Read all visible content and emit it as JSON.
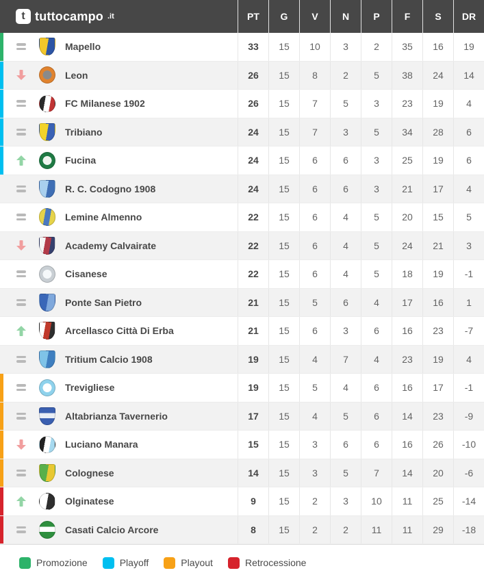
{
  "brand": {
    "icon_letter": "t",
    "name": "tuttocampo",
    "tld": ".it"
  },
  "columns": [
    "PT",
    "G",
    "V",
    "N",
    "P",
    "F",
    "S",
    "DR"
  ],
  "colors": {
    "header_bg": "#474747",
    "alt_row_bg": "#f2f2f2",
    "promozione": "#2db36a",
    "playoff": "#00bff0",
    "playout": "#f7a117",
    "retrocessione": "#d6232c",
    "trend_up": "#93d5a6",
    "trend_down": "#f19e9e",
    "trend_equal": "#b9b9b9"
  },
  "rows": [
    {
      "name": "Mapello",
      "trend": "equal",
      "zone": "promozione",
      "crest": {
        "shape": "shield",
        "style": "split2",
        "colors": [
          "#f3c72b",
          "#2d55a5"
        ]
      },
      "pt": "33",
      "g": "15",
      "v": "10",
      "n": "3",
      "p": "2",
      "f": "35",
      "s": "16",
      "dr": "19"
    },
    {
      "name": "Leon",
      "trend": "down",
      "zone": "playoff",
      "crest": {
        "shape": "circle",
        "style": "ring",
        "colors": [
          "#e0832f",
          "#8a8a8a"
        ]
      },
      "pt": "26",
      "g": "15",
      "v": "8",
      "n": "2",
      "p": "5",
      "f": "38",
      "s": "24",
      "dr": "14"
    },
    {
      "name": "FC Milanese 1902",
      "trend": "equal",
      "zone": "playoff",
      "crest": {
        "shape": "circle",
        "style": "tri",
        "colors": [
          "#2b2b2b",
          "#ffffff",
          "#c03434"
        ]
      },
      "pt": "26",
      "g": "15",
      "v": "7",
      "n": "5",
      "p": "3",
      "f": "23",
      "s": "19",
      "dr": "4"
    },
    {
      "name": "Tribiano",
      "trend": "equal",
      "zone": "playoff",
      "crest": {
        "shape": "shield",
        "style": "split2",
        "colors": [
          "#f2d32a",
          "#3a62b5"
        ]
      },
      "pt": "24",
      "g": "15",
      "v": "7",
      "n": "3",
      "p": "5",
      "f": "34",
      "s": "28",
      "dr": "6"
    },
    {
      "name": "Fucina",
      "trend": "up",
      "zone": "playoff",
      "crest": {
        "shape": "circle",
        "style": "ring",
        "colors": [
          "#1f7a44",
          "#f0f5f0"
        ]
      },
      "pt": "24",
      "g": "15",
      "v": "6",
      "n": "6",
      "p": "3",
      "f": "25",
      "s": "19",
      "dr": "6"
    },
    {
      "name": "R. C. Codogno 1908",
      "trend": "equal",
      "zone": "",
      "crest": {
        "shape": "shield",
        "style": "split2",
        "colors": [
          "#a9d0ee",
          "#3f6fb5"
        ]
      },
      "pt": "24",
      "g": "15",
      "v": "6",
      "n": "6",
      "p": "3",
      "f": "21",
      "s": "17",
      "dr": "4"
    },
    {
      "name": "Lemine Almenno",
      "trend": "equal",
      "zone": "",
      "crest": {
        "shape": "oval",
        "style": "tri",
        "colors": [
          "#e6d34a",
          "#4a79c0",
          "#e6d34a"
        ]
      },
      "pt": "22",
      "g": "15",
      "v": "6",
      "n": "4",
      "p": "5",
      "f": "20",
      "s": "15",
      "dr": "5"
    },
    {
      "name": "Academy Calvairate",
      "trend": "down",
      "zone": "",
      "crest": {
        "shape": "shield",
        "style": "tri",
        "colors": [
          "#f5f5f5",
          "#b23a48",
          "#36406e"
        ]
      },
      "pt": "22",
      "g": "15",
      "v": "6",
      "n": "4",
      "p": "5",
      "f": "24",
      "s": "21",
      "dr": "3"
    },
    {
      "name": "Cisanese",
      "trend": "equal",
      "zone": "",
      "crest": {
        "shape": "circle",
        "style": "ring",
        "colors": [
          "#c9cfd4",
          "#f5f8fa"
        ]
      },
      "pt": "22",
      "g": "15",
      "v": "6",
      "n": "4",
      "p": "5",
      "f": "18",
      "s": "19",
      "dr": "-1"
    },
    {
      "name": "Ponte San Pietro",
      "trend": "equal",
      "zone": "",
      "crest": {
        "shape": "shield",
        "style": "split2",
        "colors": [
          "#3a67b8",
          "#7fa8dc"
        ]
      },
      "pt": "21",
      "g": "15",
      "v": "5",
      "n": "6",
      "p": "4",
      "f": "17",
      "s": "16",
      "dr": "1"
    },
    {
      "name": "Arcellasco Città Di Erba",
      "trend": "up",
      "zone": "",
      "crest": {
        "shape": "shield",
        "style": "tri",
        "colors": [
          "#ffffff",
          "#c0392b",
          "#2e2e2e"
        ]
      },
      "pt": "21",
      "g": "15",
      "v": "6",
      "n": "3",
      "p": "6",
      "f": "16",
      "s": "23",
      "dr": "-7"
    },
    {
      "name": "Tritium Calcio 1908",
      "trend": "equal",
      "zone": "",
      "crest": {
        "shape": "shield",
        "style": "split2",
        "colors": [
          "#7fc3e8",
          "#3f7fc0"
        ]
      },
      "pt": "19",
      "g": "15",
      "v": "4",
      "n": "7",
      "p": "4",
      "f": "23",
      "s": "19",
      "dr": "4"
    },
    {
      "name": "Trevigliese",
      "trend": "equal",
      "zone": "playout",
      "crest": {
        "shape": "circle",
        "style": "ring",
        "colors": [
          "#8fd2ec",
          "#ffffff"
        ]
      },
      "pt": "19",
      "g": "15",
      "v": "5",
      "n": "4",
      "p": "6",
      "f": "16",
      "s": "17",
      "dr": "-1"
    },
    {
      "name": "Altabrianza Tavernerio",
      "trend": "equal",
      "zone": "playout",
      "crest": {
        "shape": "shield",
        "style": "band",
        "colors": [
          "#3a5fb0",
          "#e8edf5"
        ]
      },
      "pt": "17",
      "g": "15",
      "v": "4",
      "n": "5",
      "p": "6",
      "f": "14",
      "s": "23",
      "dr": "-9"
    },
    {
      "name": "Luciano Manara",
      "trend": "down",
      "zone": "playout",
      "crest": {
        "shape": "circle",
        "style": "tri",
        "colors": [
          "#222222",
          "#ffffff",
          "#a6d9ef"
        ]
      },
      "pt": "15",
      "g": "15",
      "v": "3",
      "n": "6",
      "p": "6",
      "f": "16",
      "s": "26",
      "dr": "-10"
    },
    {
      "name": "Colognese",
      "trend": "equal",
      "zone": "playout",
      "crest": {
        "shape": "shield",
        "style": "split2",
        "colors": [
          "#59b04a",
          "#e8c832"
        ]
      },
      "pt": "14",
      "g": "15",
      "v": "3",
      "n": "5",
      "p": "7",
      "f": "14",
      "s": "20",
      "dr": "-6"
    },
    {
      "name": "Olginatese",
      "trend": "up",
      "zone": "retrocessione",
      "crest": {
        "shape": "circle",
        "style": "split2",
        "colors": [
          "#ffffff",
          "#2e2e2e"
        ]
      },
      "pt": "9",
      "g": "15",
      "v": "2",
      "n": "3",
      "p": "10",
      "f": "11",
      "s": "25",
      "dr": "-14"
    },
    {
      "name": "Casati Calcio Arcore",
      "trend": "equal",
      "zone": "retrocessione",
      "crest": {
        "shape": "oval",
        "style": "band",
        "colors": [
          "#2e8f3e",
          "#ffffff"
        ]
      },
      "pt": "8",
      "g": "15",
      "v": "2",
      "n": "2",
      "p": "11",
      "f": "11",
      "s": "29",
      "dr": "-18"
    }
  ],
  "legend": [
    {
      "label": "Promozione",
      "color_key": "promozione"
    },
    {
      "label": "Playoff",
      "color_key": "playoff"
    },
    {
      "label": "Playout",
      "color_key": "playout"
    },
    {
      "label": "Retrocessione",
      "color_key": "retrocessione"
    }
  ]
}
